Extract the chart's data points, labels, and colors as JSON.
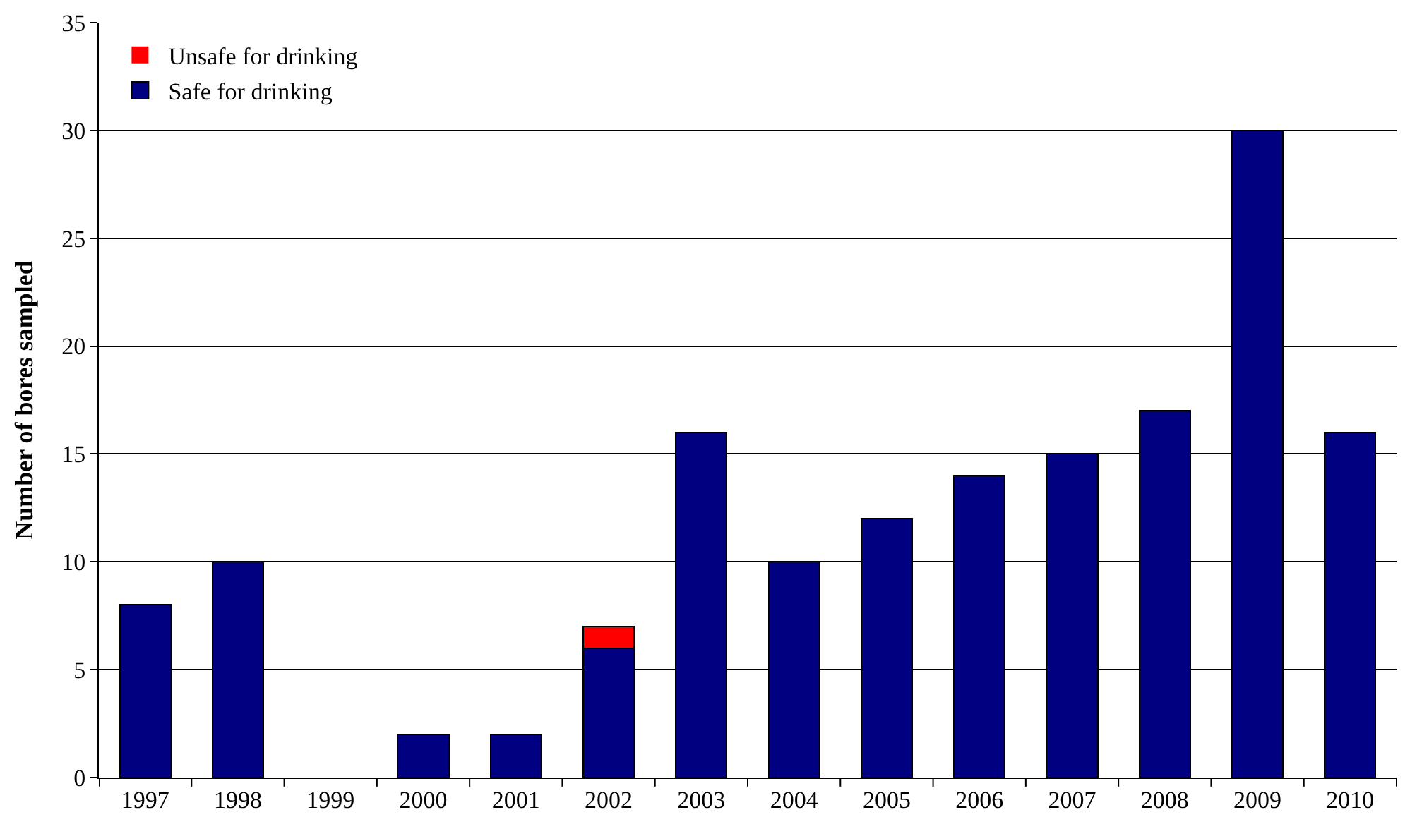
{
  "chart_data": {
    "type": "bar",
    "stacked": true,
    "ylabel": "Number of bores sampled",
    "categories": [
      "1997",
      "1998",
      "1999",
      "2000",
      "2001",
      "2002",
      "2003",
      "2004",
      "2005",
      "2006",
      "2007",
      "2008",
      "2009",
      "2010"
    ],
    "series": [
      {
        "name": "Safe for drinking",
        "color": "#000080",
        "values": [
          8,
          10,
          0,
          2,
          2,
          6,
          16,
          10,
          12,
          14,
          15,
          17,
          30,
          16
        ]
      },
      {
        "name": "Unsafe for drinking",
        "color": "#ff0000",
        "values": [
          0,
          0,
          0,
          0,
          0,
          1,
          0,
          0,
          0,
          0,
          0,
          0,
          0,
          0
        ]
      }
    ],
    "ylim": [
      0,
      35
    ],
    "yticks": [
      0,
      5,
      10,
      15,
      20,
      25,
      30,
      35
    ],
    "grid": "y",
    "legend": "top left"
  }
}
